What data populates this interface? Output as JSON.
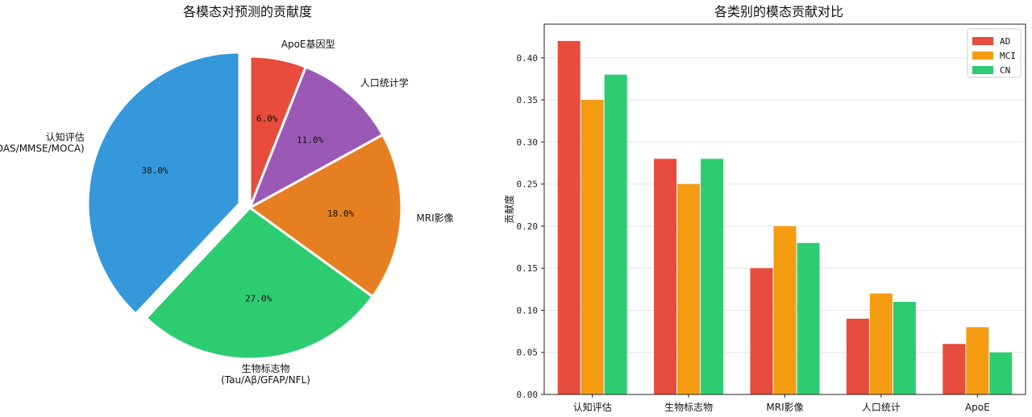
{
  "chart_data": [
    {
      "type": "pie",
      "title": "各模态对预测的贡献度",
      "slices": [
        {
          "label": "ApoE基因型",
          "sublabel": "",
          "value": 6.0,
          "pct_label": "6.0%",
          "color": "#e74c3c",
          "explode": false
        },
        {
          "label": "人口统计学",
          "sublabel": "",
          "value": 11.0,
          "pct_label": "11.0%",
          "color": "#9b59b6",
          "explode": false
        },
        {
          "label": "MRI影像",
          "sublabel": "",
          "value": 18.0,
          "pct_label": "18.0%",
          "color": "#e67e22",
          "explode": false
        },
        {
          "label": "生物标志物",
          "sublabel": "(Tau/Aβ/GFAP/NFL)",
          "value": 27.0,
          "pct_label": "27.0%",
          "color": "#2ecc71",
          "explode": false
        },
        {
          "label": "认知评估",
          "sublabel": "(ADAS/MMSE/MOCA)",
          "value": 38.0,
          "pct_label": "38.0%",
          "color": "#3498db",
          "explode": true
        }
      ]
    },
    {
      "type": "bar",
      "title": "各类别的模态贡献对比",
      "xlabel": "",
      "ylabel": "贡献度",
      "ylim": [
        0,
        0.44
      ],
      "yticks": [
        0.0,
        0.05,
        0.1,
        0.15,
        0.2,
        0.25,
        0.3,
        0.35,
        0.4
      ],
      "grid": "y",
      "legend_position": "top-right",
      "categories": [
        "认知评估",
        "生物标志物",
        "MRI影像",
        "人口统计",
        "ApoE"
      ],
      "series": [
        {
          "name": "AD",
          "color": "#e74c3c",
          "values": [
            0.42,
            0.28,
            0.15,
            0.09,
            0.06
          ]
        },
        {
          "name": "MCI",
          "color": "#f39c12",
          "values": [
            0.35,
            0.25,
            0.2,
            0.12,
            0.08
          ]
        },
        {
          "name": "CN",
          "color": "#2ecc71",
          "values": [
            0.38,
            0.28,
            0.18,
            0.11,
            0.05
          ]
        }
      ]
    }
  ]
}
